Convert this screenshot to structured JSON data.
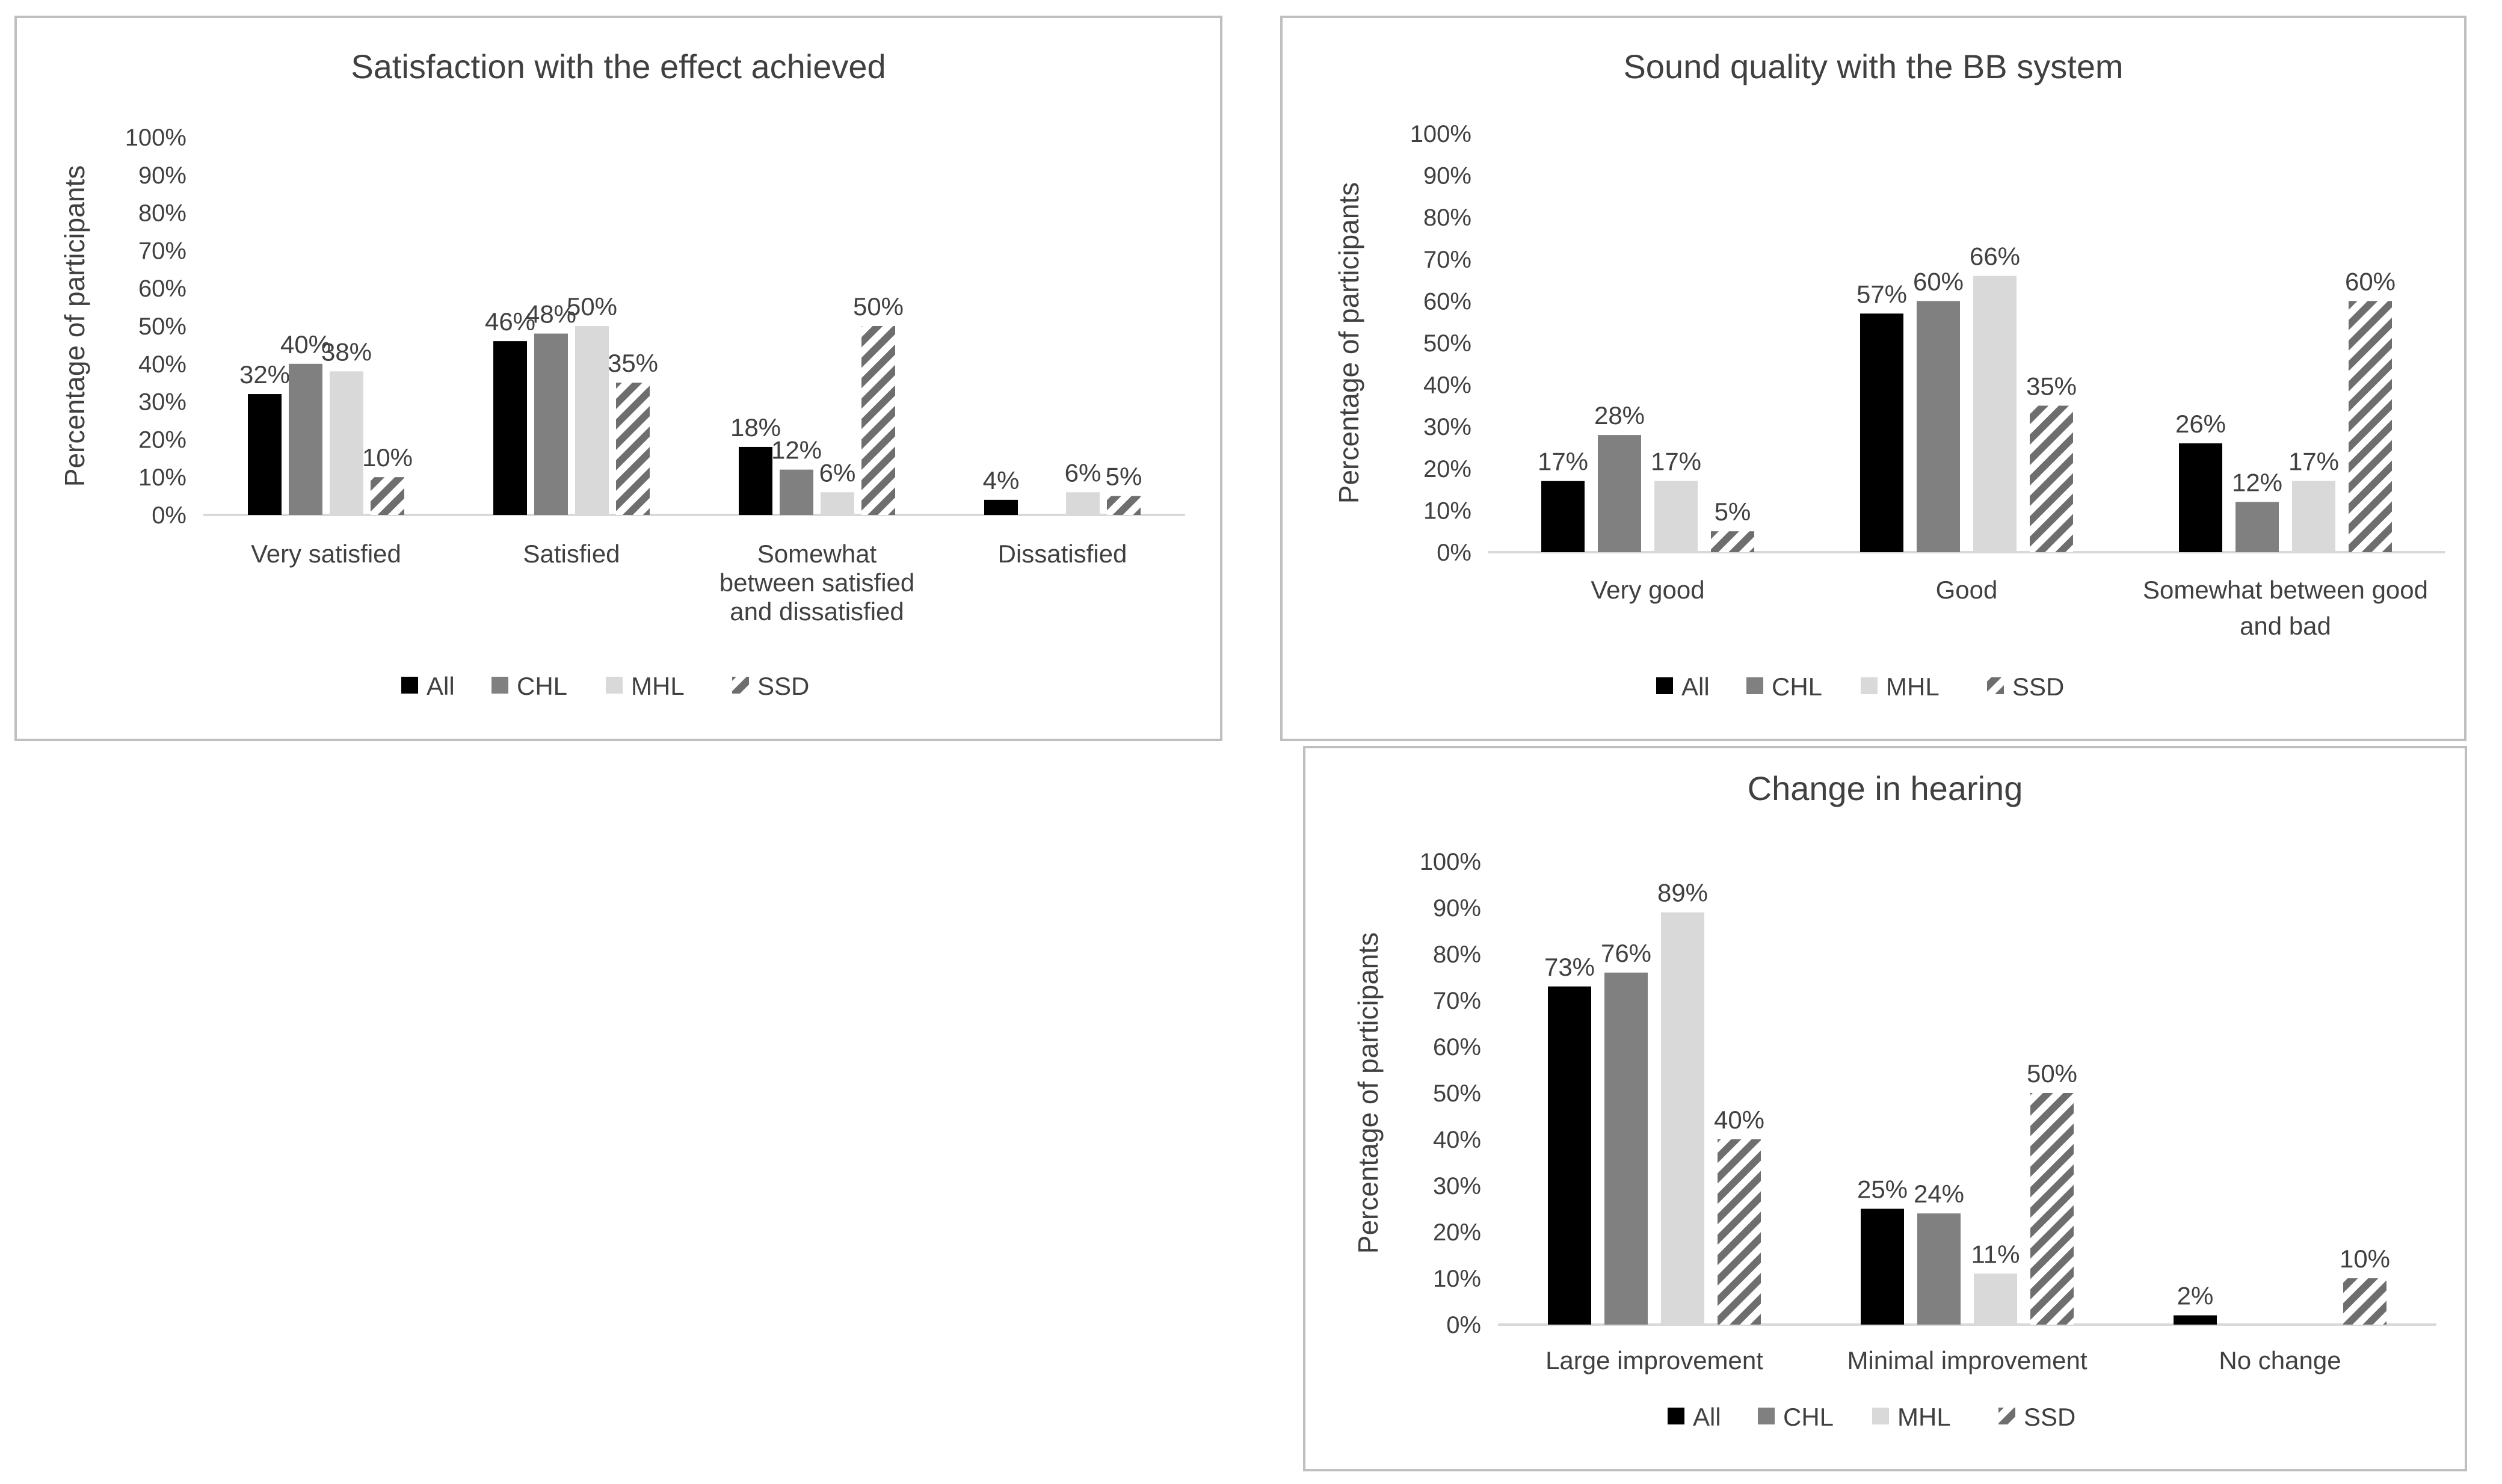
{
  "colors": {
    "All": "#000000",
    "CHL": "#808080",
    "MHL": "#d9d9d9",
    "SSD": "hatch-dark-gray",
    "axis": "#d9d9d9",
    "text": "#404040",
    "border": "#bfbfbf"
  },
  "chart_data": [
    {
      "type": "bar",
      "title": "Satisfaction with the effect achieved",
      "ylabel": "Percentage of participants",
      "xlabel": "",
      "ylim": [
        0,
        100
      ],
      "yticks": [
        "0%",
        "10%",
        "20%",
        "30%",
        "40%",
        "50%",
        "60%",
        "70%",
        "80%",
        "90%",
        "100%"
      ],
      "grid": false,
      "legend_position": "bottom",
      "categories": [
        [
          "Very satisfied"
        ],
        [
          "Satisfied"
        ],
        [
          "Somewhat",
          "between satisfied",
          "and dissatisfied"
        ],
        [
          "Dissatisfied"
        ]
      ],
      "series": [
        {
          "name": "All",
          "values": [
            32,
            46,
            18,
            4
          ],
          "labels": [
            "32%",
            "46%",
            "18%",
            "4%"
          ]
        },
        {
          "name": "CHL",
          "values": [
            40,
            48,
            12,
            0
          ],
          "labels": [
            "40%",
            "48%",
            "12%",
            ""
          ]
        },
        {
          "name": "MHL",
          "values": [
            38,
            50,
            6,
            6
          ],
          "labels": [
            "38%",
            "50%",
            "6%",
            "6%"
          ]
        },
        {
          "name": "SSD",
          "values": [
            10,
            35,
            50,
            5
          ],
          "labels": [
            "10%",
            "35%",
            "50%",
            "5%"
          ]
        }
      ]
    },
    {
      "type": "bar",
      "title": "Sound quality with the BB system",
      "ylabel": "Percentage of participants",
      "xlabel": "",
      "ylim": [
        0,
        100
      ],
      "yticks": [
        "0%",
        "10%",
        "20%",
        "30%",
        "40%",
        "50%",
        "60%",
        "70%",
        "80%",
        "90%",
        "100%"
      ],
      "grid": false,
      "legend_position": "bottom",
      "categories": [
        [
          "Very good"
        ],
        [
          "Good"
        ],
        [
          "Somewhat between good",
          "and bad"
        ]
      ],
      "series": [
        {
          "name": "All",
          "values": [
            17,
            57,
            26
          ],
          "labels": [
            "17%",
            "57%",
            "26%"
          ]
        },
        {
          "name": "CHL",
          "values": [
            28,
            60,
            12
          ],
          "labels": [
            "28%",
            "60%",
            "12%"
          ]
        },
        {
          "name": "MHL",
          "values": [
            17,
            66,
            17
          ],
          "labels": [
            "17%",
            "66%",
            "17%"
          ]
        },
        {
          "name": "SSD",
          "values": [
            5,
            35,
            60
          ],
          "labels": [
            "5%",
            "35%",
            "60%"
          ]
        }
      ]
    },
    {
      "type": "bar",
      "title": "Change in hearing",
      "ylabel": "Percentage of participants",
      "xlabel": "",
      "ylim": [
        0,
        100
      ],
      "yticks": [
        "0%",
        "10%",
        "20%",
        "30%",
        "40%",
        "50%",
        "60%",
        "70%",
        "80%",
        "90%",
        "100%"
      ],
      "grid": false,
      "legend_position": "bottom",
      "categories": [
        [
          "Large improvement"
        ],
        [
          "Minimal improvement"
        ],
        [
          "No change"
        ]
      ],
      "series": [
        {
          "name": "All",
          "values": [
            73,
            25,
            2
          ],
          "labels": [
            "73%",
            "25%",
            "2%"
          ]
        },
        {
          "name": "CHL",
          "values": [
            76,
            24,
            0
          ],
          "labels": [
            "76%",
            "24%",
            ""
          ]
        },
        {
          "name": "MHL",
          "values": [
            89,
            11,
            0
          ],
          "labels": [
            "89%",
            "11%",
            ""
          ]
        },
        {
          "name": "SSD",
          "values": [
            40,
            50,
            10
          ],
          "labels": [
            "40%",
            "50%",
            "10%"
          ]
        }
      ]
    }
  ]
}
